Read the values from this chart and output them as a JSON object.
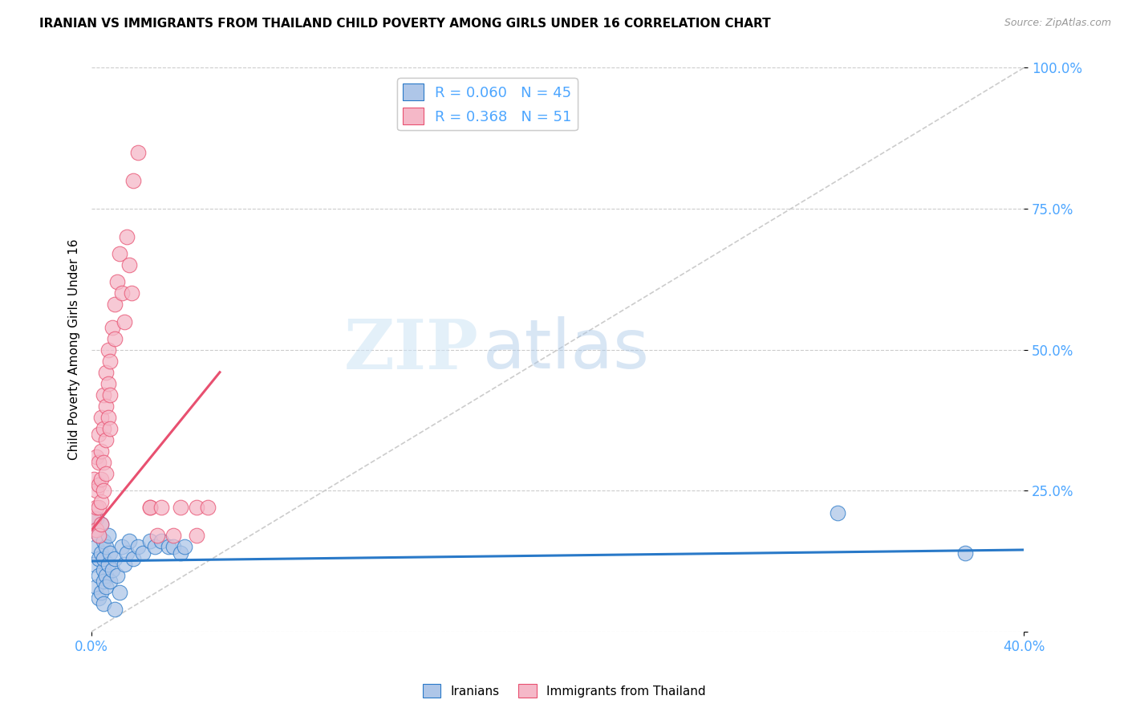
{
  "title": "IRANIAN VS IMMIGRANTS FROM THAILAND CHILD POVERTY AMONG GIRLS UNDER 16 CORRELATION CHART",
  "source": "Source: ZipAtlas.com",
  "ylabel": "Child Poverty Among Girls Under 16",
  "xlim": [
    0.0,
    0.4
  ],
  "ylim": [
    0.0,
    1.0
  ],
  "yticks": [
    0.0,
    0.25,
    0.5,
    0.75,
    1.0
  ],
  "yticklabels": [
    "",
    "25.0%",
    "50.0%",
    "75.0%",
    "100.0%"
  ],
  "blue_R": 0.06,
  "blue_N": 45,
  "pink_R": 0.368,
  "pink_N": 51,
  "blue_color": "#aec6e8",
  "blue_line_color": "#2979c8",
  "pink_color": "#f5b8c8",
  "pink_line_color": "#e85070",
  "diag_color": "#cccccc",
  "tick_color": "#4da6ff",
  "legend_label_blue": "Iranians",
  "legend_label_pink": "Immigrants from Thailand",
  "watermark_zip": "ZIP",
  "watermark_atlas": "atlas",
  "blue_scatter_x": [
    0.001,
    0.001,
    0.002,
    0.002,
    0.002,
    0.003,
    0.003,
    0.003,
    0.003,
    0.004,
    0.004,
    0.004,
    0.005,
    0.005,
    0.005,
    0.005,
    0.005,
    0.006,
    0.006,
    0.006,
    0.007,
    0.007,
    0.008,
    0.008,
    0.009,
    0.01,
    0.01,
    0.011,
    0.012,
    0.013,
    0.014,
    0.015,
    0.016,
    0.018,
    0.02,
    0.022,
    0.025,
    0.027,
    0.03,
    0.033,
    0.035,
    0.038,
    0.04,
    0.32,
    0.375
  ],
  "blue_scatter_y": [
    0.18,
    0.12,
    0.2,
    0.15,
    0.08,
    0.17,
    0.13,
    0.1,
    0.06,
    0.14,
    0.19,
    0.07,
    0.11,
    0.16,
    0.09,
    0.05,
    0.13,
    0.1,
    0.15,
    0.08,
    0.12,
    0.17,
    0.09,
    0.14,
    0.11,
    0.04,
    0.13,
    0.1,
    0.07,
    0.15,
    0.12,
    0.14,
    0.16,
    0.13,
    0.15,
    0.14,
    0.16,
    0.15,
    0.16,
    0.15,
    0.15,
    0.14,
    0.15,
    0.21,
    0.14
  ],
  "pink_scatter_x": [
    0.001,
    0.001,
    0.002,
    0.002,
    0.002,
    0.002,
    0.003,
    0.003,
    0.003,
    0.003,
    0.003,
    0.004,
    0.004,
    0.004,
    0.004,
    0.004,
    0.005,
    0.005,
    0.005,
    0.005,
    0.006,
    0.006,
    0.006,
    0.006,
    0.007,
    0.007,
    0.007,
    0.008,
    0.008,
    0.008,
    0.009,
    0.01,
    0.01,
    0.011,
    0.012,
    0.013,
    0.014,
    0.015,
    0.016,
    0.017,
    0.018,
    0.02,
    0.025,
    0.025,
    0.028,
    0.03,
    0.035,
    0.038,
    0.045,
    0.045,
    0.05
  ],
  "pink_scatter_y": [
    0.27,
    0.2,
    0.31,
    0.25,
    0.22,
    0.18,
    0.35,
    0.3,
    0.26,
    0.22,
    0.17,
    0.38,
    0.32,
    0.27,
    0.23,
    0.19,
    0.42,
    0.36,
    0.3,
    0.25,
    0.46,
    0.4,
    0.34,
    0.28,
    0.5,
    0.44,
    0.38,
    0.48,
    0.42,
    0.36,
    0.54,
    0.58,
    0.52,
    0.62,
    0.67,
    0.6,
    0.55,
    0.7,
    0.65,
    0.6,
    0.8,
    0.85,
    0.22,
    0.22,
    0.17,
    0.22,
    0.17,
    0.22,
    0.22,
    0.17,
    0.22
  ],
  "pink_trend_x0": 0.0,
  "pink_trend_y0": 0.18,
  "pink_trend_x1": 0.055,
  "pink_trend_y1": 0.46,
  "blue_trend_x0": 0.0,
  "blue_trend_y0": 0.125,
  "blue_trend_x1": 0.4,
  "blue_trend_y1": 0.145
}
